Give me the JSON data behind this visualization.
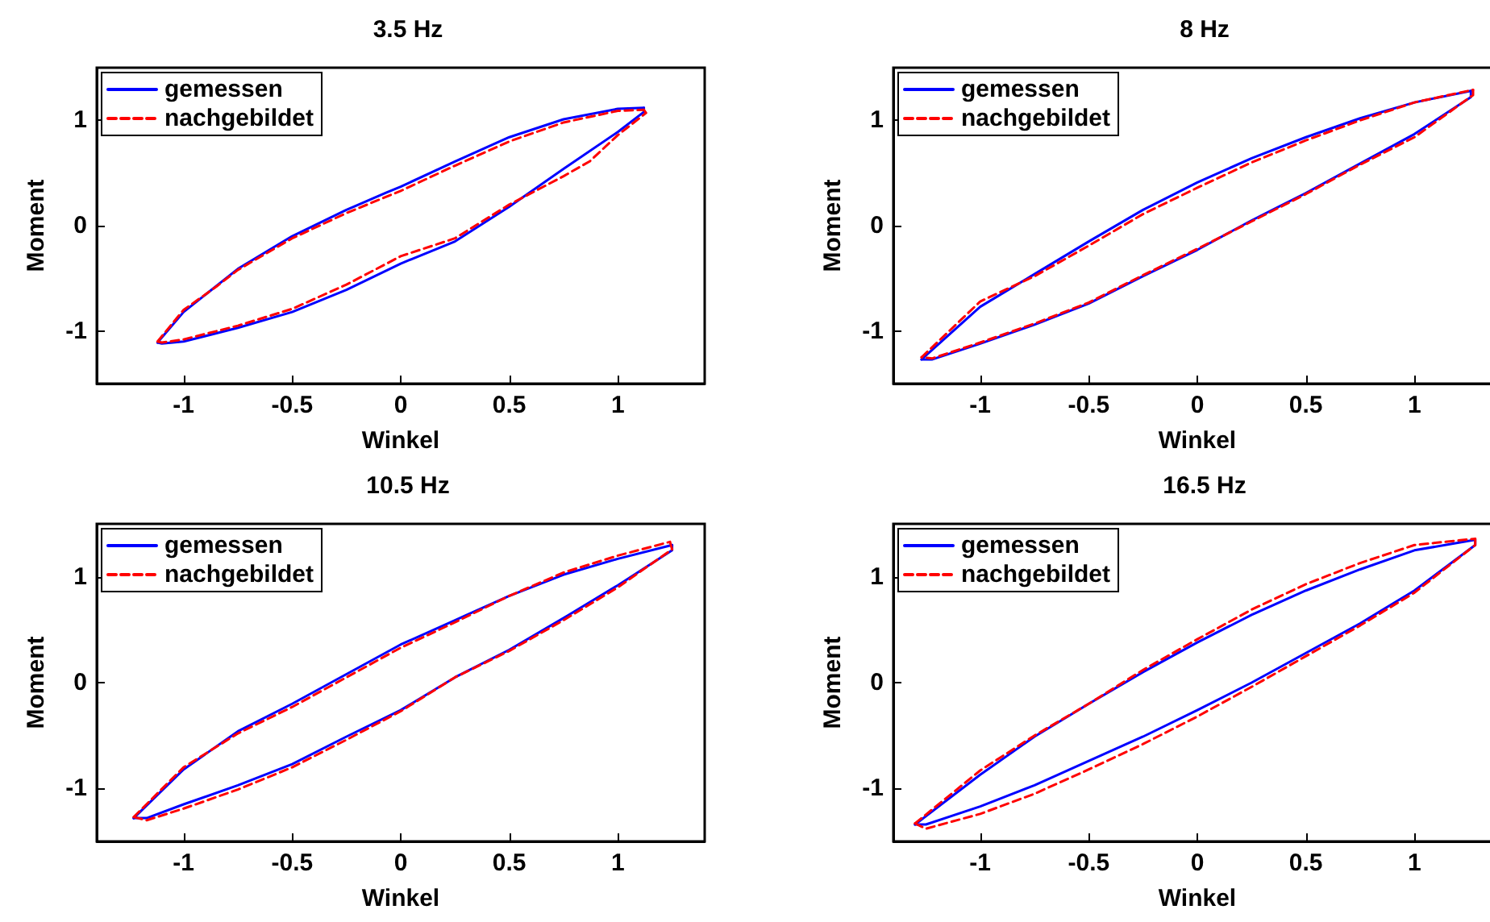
{
  "chart_data": [
    {
      "type": "line",
      "title": "3.5 Hz",
      "xlabel": "Winkel",
      "ylabel": "Moment",
      "xlim": [
        -1.4,
        1.4
      ],
      "ylim": [
        -1.5,
        1.5
      ],
      "xticks": [
        -1,
        -0.5,
        0,
        0.5,
        1
      ],
      "yticks": [
        -1,
        0,
        1
      ],
      "legend": "top left",
      "grid": false,
      "marker": "none",
      "series": [
        {
          "name": "gemessen",
          "color": "#0000ff",
          "line_style": "solid",
          "x": [
            -1.12,
            -1.0,
            -0.75,
            -0.5,
            -0.25,
            -0.07,
            0,
            0.25,
            0.5,
            0.75,
            1.0,
            1.12
          ],
          "values": [
            -1.11,
            -0.82,
            -0.41,
            -0.1,
            0.15,
            0.31,
            0.37,
            0.61,
            0.84,
            1.01,
            1.11,
            1.12
          ]
        },
        {
          "color": "#0000ff",
          "line_style": "solid",
          "x": [
            1.12,
            1.12,
            1.0,
            0.75,
            0.5,
            0.25,
            0,
            -0.25,
            -0.5,
            -0.75,
            -1.0,
            -1.1,
            -1.12
          ],
          "values": [
            1.12,
            1.08,
            0.89,
            0.54,
            0.18,
            -0.15,
            -0.36,
            -0.61,
            -0.82,
            -0.97,
            -1.1,
            -1.12,
            -1.11
          ]
        },
        {
          "name": "nachgebildet",
          "color": "#ff0000",
          "line_style": "dashed",
          "x": [
            -1.12,
            -1.0,
            -0.85,
            -0.75,
            -0.5,
            -0.25,
            0,
            0.25,
            0.5,
            0.75,
            1.0,
            1.12
          ],
          "values": [
            -1.1,
            -0.8,
            -0.58,
            -0.42,
            -0.12,
            0.12,
            0.33,
            0.57,
            0.8,
            0.98,
            1.09,
            1.1
          ]
        },
        {
          "color": "#ff0000",
          "line_style": "dashed",
          "x": [
            1.12,
            1.13,
            1.0,
            0.87,
            0.75,
            0.5,
            0.25,
            0,
            -0.25,
            -0.5,
            -0.75,
            -1.0,
            -1.1,
            -1.12
          ],
          "values": [
            1.1,
            1.07,
            0.86,
            0.61,
            0.47,
            0.2,
            -0.12,
            -0.29,
            -0.56,
            -0.79,
            -0.95,
            -1.08,
            -1.11,
            -1.1
          ]
        }
      ]
    },
    {
      "type": "line",
      "title": "8 Hz",
      "xlabel": "Winkel",
      "ylabel": "Moment",
      "xlim": [
        -1.4,
        1.4
      ],
      "ylim": [
        -1.5,
        1.5
      ],
      "xticks": [
        -1,
        -0.5,
        0,
        0.5,
        1
      ],
      "yticks": [
        -1,
        0,
        1
      ],
      "legend": "top left",
      "grid": false,
      "marker": "none",
      "series": [
        {
          "name": "gemessen",
          "color": "#0000ff",
          "line_style": "solid",
          "x": [
            -1.27,
            -1.0,
            -0.75,
            -0.5,
            -0.25,
            0,
            0.25,
            0.5,
            0.75,
            1.0,
            1.26
          ],
          "values": [
            -1.27,
            -0.77,
            -0.46,
            -0.15,
            0.15,
            0.41,
            0.64,
            0.84,
            1.02,
            1.17,
            1.28
          ]
        },
        {
          "color": "#0000ff",
          "line_style": "solid",
          "x": [
            1.26,
            1.26,
            1.0,
            0.75,
            0.5,
            0.25,
            0,
            -0.25,
            -0.5,
            -0.75,
            -1.0,
            -1.22,
            -1.27
          ],
          "values": [
            1.28,
            1.22,
            0.87,
            0.59,
            0.31,
            0.05,
            -0.23,
            -0.48,
            -0.74,
            -0.94,
            -1.12,
            -1.27,
            -1.27
          ]
        },
        {
          "name": "nachgebildet",
          "color": "#ff0000",
          "line_style": "dashed",
          "x": [
            -1.27,
            -1.0,
            -0.75,
            -0.5,
            -0.25,
            0,
            0.25,
            0.5,
            0.75,
            1.0,
            1.27
          ],
          "values": [
            -1.25,
            -0.72,
            -0.48,
            -0.19,
            0.11,
            0.36,
            0.6,
            0.81,
            1.0,
            1.17,
            1.29
          ]
        },
        {
          "color": "#ff0000",
          "line_style": "dashed",
          "x": [
            1.27,
            1.27,
            1.0,
            0.75,
            0.5,
            0.25,
            0,
            -0.25,
            -0.5,
            -0.75,
            -1.0,
            -1.22,
            -1.27
          ],
          "values": [
            1.29,
            1.24,
            0.84,
            0.58,
            0.3,
            0.04,
            -0.22,
            -0.47,
            -0.73,
            -0.93,
            -1.11,
            -1.26,
            -1.25
          ]
        }
      ]
    },
    {
      "type": "line",
      "title": "10.5 Hz",
      "xlabel": "Winkel",
      "ylabel": "Moment",
      "xlim": [
        -1.4,
        1.4
      ],
      "ylim": [
        -1.5,
        1.5
      ],
      "xticks": [
        -1,
        -0.5,
        0,
        0.5,
        1
      ],
      "yticks": [
        -1,
        0,
        1
      ],
      "legend": "top left",
      "grid": false,
      "marker": "none",
      "series": [
        {
          "name": "gemessen",
          "color": "#0000ff",
          "line_style": "solid",
          "x": [
            -1.23,
            -1.0,
            -0.75,
            -0.5,
            -0.25,
            0,
            0.25,
            0.5,
            0.75,
            1.0,
            1.25
          ],
          "values": [
            -1.28,
            -0.82,
            -0.46,
            -0.2,
            0.08,
            0.36,
            0.59,
            0.82,
            1.02,
            1.17,
            1.3
          ]
        },
        {
          "color": "#0000ff",
          "line_style": "solid",
          "x": [
            1.25,
            1.25,
            1.0,
            0.75,
            0.5,
            0.25,
            0,
            -0.25,
            -0.5,
            -0.75,
            -1.0,
            -1.17,
            -1.23
          ],
          "values": [
            1.3,
            1.25,
            0.92,
            0.61,
            0.31,
            0.05,
            -0.26,
            -0.51,
            -0.77,
            -0.97,
            -1.15,
            -1.28,
            -1.28
          ]
        },
        {
          "name": "nachgebildet",
          "color": "#ff0000",
          "line_style": "dashed",
          "x": [
            -1.23,
            -1.0,
            -0.75,
            -0.5,
            -0.25,
            0,
            0.25,
            0.5,
            0.75,
            1.0,
            1.24
          ],
          "values": [
            -1.27,
            -0.8,
            -0.48,
            -0.23,
            0.05,
            0.33,
            0.57,
            0.82,
            1.04,
            1.2,
            1.33
          ]
        },
        {
          "color": "#ff0000",
          "line_style": "dashed",
          "x": [
            1.24,
            1.25,
            1.0,
            0.75,
            0.5,
            0.25,
            0,
            -0.25,
            -0.5,
            -0.75,
            -1.0,
            -1.17,
            -1.23
          ],
          "values": [
            1.33,
            1.26,
            0.9,
            0.59,
            0.3,
            0.05,
            -0.27,
            -0.54,
            -0.8,
            -1.01,
            -1.19,
            -1.3,
            -1.27
          ]
        }
      ]
    },
    {
      "type": "line",
      "title": "16.5 Hz",
      "xlabel": "Winkel",
      "ylabel": "Moment",
      "xlim": [
        -1.4,
        1.4
      ],
      "ylim": [
        -1.5,
        1.5
      ],
      "xticks": [
        -1,
        -0.5,
        0,
        0.5,
        1
      ],
      "yticks": [
        -1,
        0,
        1
      ],
      "legend": "top left",
      "grid": false,
      "marker": "none",
      "series": [
        {
          "name": "gemessen",
          "color": "#0000ff",
          "line_style": "solid",
          "x": [
            -1.3,
            -1.0,
            -0.75,
            -0.5,
            -0.25,
            0,
            0.25,
            0.5,
            0.75,
            1.0,
            1.28
          ],
          "values": [
            -1.34,
            -0.87,
            -0.51,
            -0.2,
            0.1,
            0.38,
            0.64,
            0.87,
            1.07,
            1.25,
            1.35
          ]
        },
        {
          "color": "#0000ff",
          "line_style": "solid",
          "x": [
            1.28,
            1.28,
            1.0,
            0.75,
            0.5,
            0.25,
            0,
            -0.25,
            -0.5,
            -0.75,
            -1.0,
            -1.25,
            -1.3
          ],
          "values": [
            1.35,
            1.3,
            0.87,
            0.56,
            0.28,
            0.0,
            -0.26,
            -0.51,
            -0.74,
            -0.97,
            -1.17,
            -1.34,
            -1.34
          ]
        },
        {
          "name": "nachgebildet",
          "color": "#ff0000",
          "line_style": "dashed",
          "x": [
            -1.3,
            -1.0,
            -0.75,
            -0.5,
            -0.25,
            0,
            0.25,
            0.5,
            0.75,
            1.0,
            1.28
          ],
          "values": [
            -1.33,
            -0.83,
            -0.5,
            -0.2,
            0.12,
            0.41,
            0.69,
            0.93,
            1.13,
            1.3,
            1.36
          ]
        },
        {
          "color": "#ff0000",
          "line_style": "dashed",
          "x": [
            1.28,
            1.28,
            1.0,
            0.75,
            0.5,
            0.25,
            0,
            -0.25,
            -0.5,
            -0.75,
            -1.0,
            -1.25,
            -1.3
          ],
          "values": [
            1.36,
            1.3,
            0.85,
            0.54,
            0.25,
            -0.04,
            -0.32,
            -0.58,
            -0.82,
            -1.05,
            -1.24,
            -1.38,
            -1.33
          ]
        }
      ]
    }
  ]
}
